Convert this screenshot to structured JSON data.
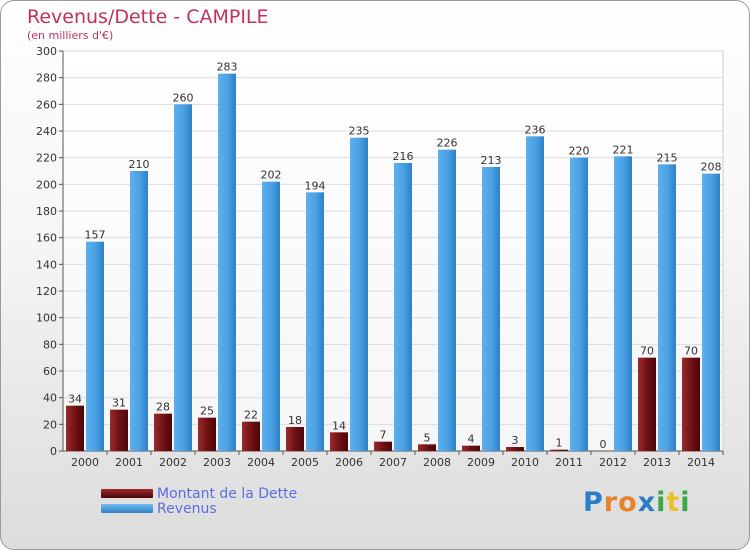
{
  "title": "Revenus/Dette - CAMPILE",
  "subtitle": "(en milliers d'€)",
  "colors": {
    "dette": "#6e0f12",
    "revenus": "#4aa0e4",
    "title": "#c0325a",
    "legend_text": "#5a6ee0"
  },
  "legend": [
    {
      "label": "Montant de la Dette",
      "color": "#6e0f12"
    },
    {
      "label": "Revenus",
      "color": "#4aa0e4"
    }
  ],
  "logo_text": "Proxiti",
  "chart_data": {
    "type": "bar",
    "categories": [
      "2000",
      "2001",
      "2002",
      "2003",
      "2004",
      "2005",
      "2006",
      "2007",
      "2008",
      "2009",
      "2010",
      "2011",
      "2012",
      "2013",
      "2014"
    ],
    "series": [
      {
        "name": "Montant de la Dette",
        "values": [
          34,
          31,
          28,
          25,
          22,
          18,
          14,
          7,
          5,
          4,
          3,
          1,
          0,
          70,
          70
        ]
      },
      {
        "name": "Revenus",
        "values": [
          157,
          210,
          260,
          283,
          202,
          194,
          235,
          216,
          226,
          213,
          236,
          220,
          221,
          215,
          208
        ]
      }
    ],
    "ylim": [
      0,
      300
    ],
    "yticks": [
      0,
      20,
      40,
      60,
      80,
      100,
      120,
      140,
      160,
      180,
      200,
      220,
      240,
      260,
      280,
      300
    ],
    "grid": true,
    "legend_position": "bottom-left"
  }
}
